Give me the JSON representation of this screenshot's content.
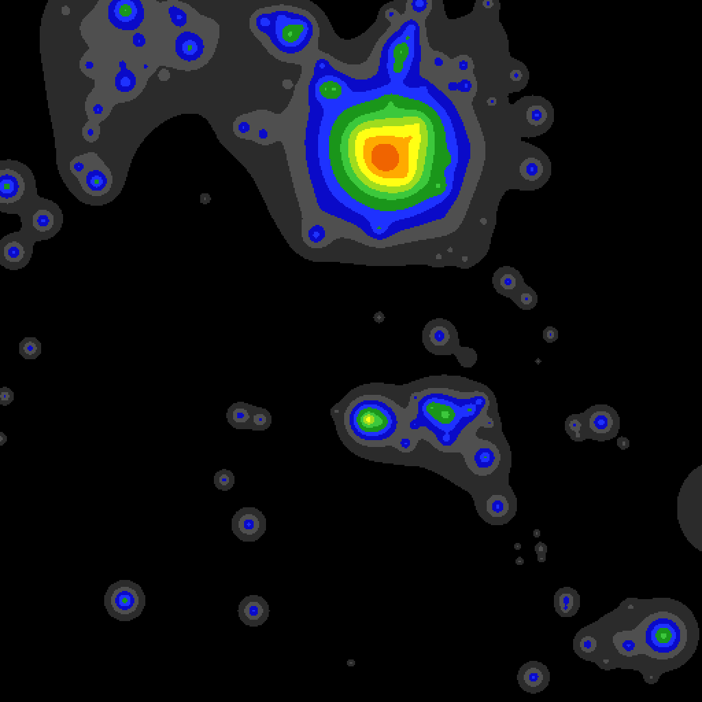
{
  "chart_data": {
    "type": "contour",
    "xlim": [
      0,
      1024
    ],
    "ylim": [
      0,
      1024
    ],
    "tick_labels": false,
    "grid": false,
    "levels": [
      0.03,
      0.08,
      0.15,
      0.25,
      0.4,
      0.7,
      1.0,
      1.4,
      2.0,
      2.8
    ],
    "colors": [
      "#2b2b2b",
      "#4f4f4f",
      "#0a0ac8",
      "#1e32ff",
      "#1a961a",
      "#3cc83c",
      "#a0dc1e",
      "#ffff14",
      "#ffaa00",
      "#f06400"
    ],
    "sources": [
      {
        "x": 183,
        "y": 15,
        "intensity": 0.7,
        "radius": 12
      },
      {
        "x": 262,
        "y": 25,
        "intensity": 0.25,
        "radius": 8
      },
      {
        "x": 277,
        "y": 70,
        "intensity": 0.45,
        "radius": 12
      },
      {
        "x": 183,
        "y": 120,
        "intensity": 0.35,
        "radius": 10
      },
      {
        "x": 203,
        "y": 60,
        "intensity": 0.2,
        "radius": 6
      },
      {
        "x": 130,
        "y": 95,
        "intensity": 0.2,
        "radius": 6
      },
      {
        "x": 143,
        "y": 160,
        "intensity": 0.22,
        "radius": 6
      },
      {
        "x": 132,
        "y": 193,
        "intensity": 0.2,
        "radius": 6
      },
      {
        "x": 114,
        "y": 243,
        "intensity": 0.22,
        "radius": 7
      },
      {
        "x": 141,
        "y": 265,
        "intensity": 0.5,
        "radius": 10
      },
      {
        "x": 95,
        "y": 15,
        "intensity": 0.1,
        "radius": 6
      },
      {
        "x": 252,
        "y": 14,
        "intensity": 0.15,
        "radius": 5
      },
      {
        "x": 213,
        "y": 97,
        "intensity": 0.12,
        "radius": 4
      },
      {
        "x": 240,
        "y": 112,
        "intensity": 0.12,
        "radius": 4
      },
      {
        "x": 178,
        "y": 93,
        "intensity": 0.1,
        "radius": 4
      },
      {
        "x": 130,
        "y": 40,
        "intensity": 0.07,
        "radius": 60
      },
      {
        "x": 230,
        "y": 40,
        "intensity": 0.07,
        "radius": 60
      },
      {
        "x": 140,
        "y": 150,
        "intensity": 0.06,
        "radius": 45
      },
      {
        "x": 135,
        "y": 230,
        "intensity": 0.06,
        "radius": 40
      },
      {
        "x": 310,
        "y": 40,
        "intensity": 0.06,
        "radius": 50
      },
      {
        "x": 190,
        "y": 90,
        "intensity": 0.05,
        "radius": 35
      },
      {
        "x": 385,
        "y": 32,
        "intensity": 0.35,
        "radius": 9
      },
      {
        "x": 423,
        "y": 50,
        "intensity": 0.8,
        "radius": 14
      },
      {
        "x": 410,
        "y": 25,
        "intensity": 0.2,
        "radius": 8
      },
      {
        "x": 440,
        "y": 40,
        "intensity": 0.3,
        "radius": 10
      },
      {
        "x": 355,
        "y": 186,
        "intensity": 0.25,
        "radius": 8
      },
      {
        "x": 384,
        "y": 196,
        "intensity": 0.2,
        "radius": 7
      },
      {
        "x": 418,
        "y": 122,
        "intensity": 0.1,
        "radius": 4
      },
      {
        "x": 475,
        "y": 130,
        "intensity": 0.5,
        "radius": 12
      },
      {
        "x": 488,
        "y": 130,
        "intensity": 0.5,
        "radius": 10
      },
      {
        "x": 470,
        "y": 95,
        "intensity": 0.25,
        "radius": 8
      },
      {
        "x": 585,
        "y": 75,
        "intensity": 0.7,
        "radius": 14
      },
      {
        "x": 580,
        "y": 100,
        "intensity": 0.4,
        "radius": 10
      },
      {
        "x": 600,
        "y": 40,
        "intensity": 0.3,
        "radius": 8
      },
      {
        "x": 612,
        "y": 5,
        "intensity": 0.4,
        "radius": 10
      },
      {
        "x": 570,
        "y": 20,
        "intensity": 0.2,
        "radius": 6
      },
      {
        "x": 595,
        "y": 55,
        "intensity": 0.25,
        "radius": 8
      },
      {
        "x": 640,
        "y": 90,
        "intensity": 0.2,
        "radius": 7
      },
      {
        "x": 676,
        "y": 95,
        "intensity": 0.25,
        "radius": 7
      },
      {
        "x": 680,
        "y": 125,
        "intensity": 0.25,
        "radius": 8
      },
      {
        "x": 660,
        "y": 125,
        "intensity": 0.15,
        "radius": 5
      },
      {
        "x": 712,
        "y": 5,
        "intensity": 0.2,
        "radius": 6
      },
      {
        "x": 718,
        "y": 148,
        "intensity": 0.15,
        "radius": 5
      },
      {
        "x": 753,
        "y": 110,
        "intensity": 0.2,
        "radius": 7
      },
      {
        "x": 618,
        "y": 130,
        "intensity": 0.15,
        "radius": 6
      },
      {
        "x": 560,
        "y": 230,
        "intensity": 4.8,
        "radius": 27
      },
      {
        "x": 600,
        "y": 200,
        "intensity": 1.0,
        "radius": 25
      },
      {
        "x": 530,
        "y": 200,
        "intensity": 0.8,
        "radius": 25
      },
      {
        "x": 590,
        "y": 255,
        "intensity": 1.0,
        "radius": 22
      },
      {
        "x": 610,
        "y": 180,
        "intensity": 0.6,
        "radius": 18
      },
      {
        "x": 640,
        "y": 272,
        "intensity": 0.5,
        "radius": 9
      },
      {
        "x": 652,
        "y": 232,
        "intensity": 0.3,
        "radius": 6
      },
      {
        "x": 570,
        "y": 150,
        "intensity": 0.3,
        "radius": 10
      },
      {
        "x": 470,
        "y": 300,
        "intensity": 0.07,
        "radius": 50
      },
      {
        "x": 650,
        "y": 320,
        "intensity": 0.06,
        "radius": 40
      },
      {
        "x": 480,
        "y": 180,
        "intensity": 0.07,
        "radius": 60
      },
      {
        "x": 680,
        "y": 220,
        "intensity": 0.06,
        "radius": 50
      },
      {
        "x": 700,
        "y": 60,
        "intensity": 0.06,
        "radius": 50
      },
      {
        "x": 380,
        "y": 170,
        "intensity": 0.06,
        "radius": 45
      },
      {
        "x": 690,
        "y": 360,
        "intensity": 0.04,
        "radius": 20
      },
      {
        "x": 461,
        "y": 343,
        "intensity": 0.3,
        "radius": 10
      },
      {
        "x": 553,
        "y": 333,
        "intensity": 0.3,
        "radius": 10
      },
      {
        "x": 640,
        "y": 375,
        "intensity": 0.1,
        "radius": 5
      },
      {
        "x": 678,
        "y": 378,
        "intensity": 0.1,
        "radius": 5
      },
      {
        "x": 706,
        "y": 323,
        "intensity": 0.1,
        "radius": 5
      },
      {
        "x": 657,
        "y": 365,
        "intensity": 0.08,
        "radius": 4
      },
      {
        "x": 783,
        "y": 168,
        "intensity": 0.3,
        "radius": 10
      },
      {
        "x": 776,
        "y": 247,
        "intensity": 0.3,
        "radius": 11
      },
      {
        "x": 10,
        "y": 272,
        "intensity": 0.6,
        "radius": 12
      },
      {
        "x": 63,
        "y": 322,
        "intensity": 0.3,
        "radius": 11
      },
      {
        "x": 20,
        "y": 368,
        "intensity": 0.3,
        "radius": 11
      },
      {
        "x": 44,
        "y": 508,
        "intensity": 0.25,
        "radius": 8
      },
      {
        "x": 7,
        "y": 578,
        "intensity": 0.2,
        "radius": 7
      },
      {
        "x": 0,
        "y": 640,
        "intensity": 0.15,
        "radius": 6
      },
      {
        "x": 299,
        "y": 290,
        "intensity": 0.1,
        "radius": 5
      },
      {
        "x": 741,
        "y": 411,
        "intensity": 0.25,
        "radius": 9
      },
      {
        "x": 768,
        "y": 436,
        "intensity": 0.2,
        "radius": 8
      },
      {
        "x": 803,
        "y": 488,
        "intensity": 0.2,
        "radius": 6
      },
      {
        "x": 785,
        "y": 527,
        "intensity": 0.08,
        "radius": 4
      },
      {
        "x": 553,
        "y": 463,
        "intensity": 0.12,
        "radius": 5
      },
      {
        "x": 641,
        "y": 490,
        "intensity": 0.3,
        "radius": 10
      },
      {
        "x": 350,
        "y": 606,
        "intensity": 0.25,
        "radius": 9
      },
      {
        "x": 380,
        "y": 612,
        "intensity": 0.2,
        "radius": 8
      },
      {
        "x": 327,
        "y": 700,
        "intensity": 0.2,
        "radius": 8
      },
      {
        "x": 363,
        "y": 765,
        "intensity": 0.3,
        "radius": 11
      },
      {
        "x": 182,
        "y": 876,
        "intensity": 0.6,
        "radius": 10
      },
      {
        "x": 370,
        "y": 891,
        "intensity": 0.3,
        "radius": 10
      },
      {
        "x": 726,
        "y": 739,
        "intensity": 0.3,
        "radius": 11
      },
      {
        "x": 755,
        "y": 797,
        "intensity": 0.1,
        "radius": 4
      },
      {
        "x": 783,
        "y": 778,
        "intensity": 0.1,
        "radius": 4
      },
      {
        "x": 789,
        "y": 800,
        "intensity": 0.15,
        "radius": 5
      },
      {
        "x": 790,
        "y": 815,
        "intensity": 0.1,
        "radius": 4
      },
      {
        "x": 758,
        "y": 819,
        "intensity": 0.12,
        "radius": 4
      },
      {
        "x": 826,
        "y": 875,
        "intensity": 0.25,
        "radius": 8
      },
      {
        "x": 825,
        "y": 888,
        "intensity": 0.15,
        "radius": 5
      },
      {
        "x": 512,
        "y": 967,
        "intensity": 0.1,
        "radius": 5
      },
      {
        "x": 778,
        "y": 988,
        "intensity": 0.3,
        "radius": 10
      },
      {
        "x": 537,
        "y": 612,
        "intensity": 1.8,
        "radius": 10
      },
      {
        "x": 555,
        "y": 615,
        "intensity": 0.6,
        "radius": 10
      },
      {
        "x": 650,
        "y": 605,
        "intensity": 0.9,
        "radius": 12
      },
      {
        "x": 630,
        "y": 595,
        "intensity": 0.6,
        "radius": 10
      },
      {
        "x": 685,
        "y": 598,
        "intensity": 0.4,
        "radius": 9
      },
      {
        "x": 700,
        "y": 585,
        "intensity": 0.3,
        "radius": 7
      },
      {
        "x": 708,
        "y": 667,
        "intensity": 0.4,
        "radius": 10
      },
      {
        "x": 592,
        "y": 647,
        "intensity": 0.25,
        "radius": 7
      },
      {
        "x": 651,
        "y": 641,
        "intensity": 0.25,
        "radius": 7
      },
      {
        "x": 604,
        "y": 620,
        "intensity": 0.2,
        "radius": 6
      },
      {
        "x": 714,
        "y": 617,
        "intensity": 0.15,
        "radius": 5
      },
      {
        "x": 491,
        "y": 600,
        "intensity": 0.1,
        "radius": 4
      },
      {
        "x": 605,
        "y": 580,
        "intensity": 0.12,
        "radius": 4
      },
      {
        "x": 560,
        "y": 620,
        "intensity": 0.08,
        "radius": 40
      },
      {
        "x": 660,
        "y": 630,
        "intensity": 0.08,
        "radius": 40
      },
      {
        "x": 700,
        "y": 680,
        "intensity": 0.06,
        "radius": 30
      },
      {
        "x": 684,
        "y": 520,
        "intensity": 0.05,
        "radius": 15
      },
      {
        "x": 877,
        "y": 616,
        "intensity": 0.4,
        "radius": 10
      },
      {
        "x": 838,
        "y": 620,
        "intensity": 0.2,
        "radius": 7
      },
      {
        "x": 843,
        "y": 636,
        "intensity": 0.1,
        "radius": 5
      },
      {
        "x": 910,
        "y": 647,
        "intensity": 0.12,
        "radius": 5
      },
      {
        "x": 968,
        "y": 927,
        "intensity": 0.9,
        "radius": 12
      },
      {
        "x": 857,
        "y": 940,
        "intensity": 0.25,
        "radius": 8
      },
      {
        "x": 917,
        "y": 942,
        "intensity": 0.25,
        "radius": 8
      },
      {
        "x": 884,
        "y": 965,
        "intensity": 0.1,
        "radius": 5
      },
      {
        "x": 950,
        "y": 988,
        "intensity": 0.1,
        "radius": 5
      },
      {
        "x": 920,
        "y": 885,
        "intensity": 0.1,
        "radius": 5
      },
      {
        "x": 900,
        "y": 930,
        "intensity": 0.07,
        "radius": 35
      },
      {
        "x": 970,
        "y": 930,
        "intensity": 0.06,
        "radius": 30
      },
      {
        "x": 1060,
        "y": 740,
        "intensity": 0.1,
        "radius": 60
      }
    ]
  }
}
